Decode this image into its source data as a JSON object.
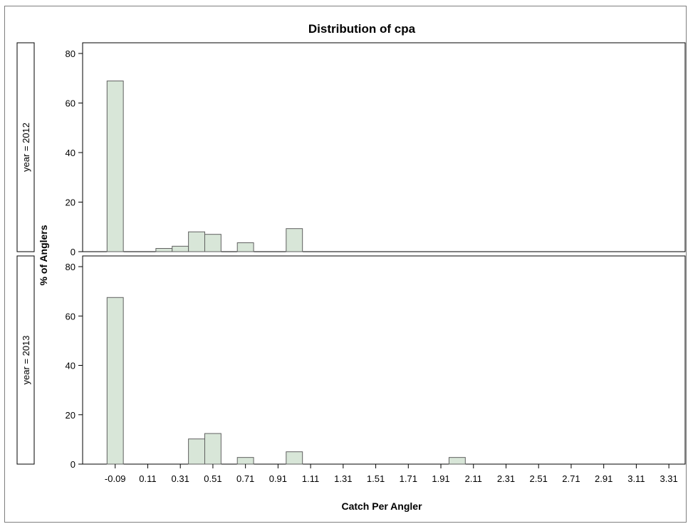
{
  "chart_data": {
    "type": "bar",
    "title": "Distribution of cpa",
    "xlabel": "Catch Per Angler",
    "ylabel": "% of Anglers",
    "x_ticks": [
      "-0.09",
      "0.11",
      "0.31",
      "0.51",
      "0.71",
      "0.91",
      "1.11",
      "1.31",
      "1.51",
      "1.71",
      "1.91",
      "2.11",
      "2.31",
      "2.51",
      "2.71",
      "2.91",
      "3.11",
      "3.31"
    ],
    "x_tick_values": [
      -0.09,
      0.11,
      0.31,
      0.51,
      0.71,
      0.91,
      1.11,
      1.31,
      1.51,
      1.71,
      1.91,
      2.11,
      2.31,
      2.51,
      2.71,
      2.91,
      3.11,
      3.31
    ],
    "xlim": [
      -0.29,
      3.41
    ],
    "bin_width": 0.2,
    "ylim": [
      0,
      84
    ],
    "y_ticks": [
      0,
      20,
      40,
      60,
      80
    ],
    "grid": false,
    "bar_fill": "#d8e6d8",
    "bar_stroke": "#606060",
    "panels": [
      {
        "label": "year = 2012",
        "bins": [
          {
            "x": -0.09,
            "value": 68.9
          },
          {
            "x": 0.21,
            "value": 1.3
          },
          {
            "x": 0.31,
            "value": 2.2
          },
          {
            "x": 0.41,
            "value": 8.0
          },
          {
            "x": 0.51,
            "value": 7.0
          },
          {
            "x": 0.71,
            "value": 3.6
          },
          {
            "x": 1.01,
            "value": 9.3
          }
        ]
      },
      {
        "label": "year = 2013",
        "bins": [
          {
            "x": -0.09,
            "value": 67.5
          },
          {
            "x": 0.41,
            "value": 10.2
          },
          {
            "x": 0.51,
            "value": 12.4
          },
          {
            "x": 0.71,
            "value": 2.7
          },
          {
            "x": 1.01,
            "value": 5.0
          },
          {
            "x": 2.01,
            "value": 2.7
          }
        ]
      }
    ]
  }
}
